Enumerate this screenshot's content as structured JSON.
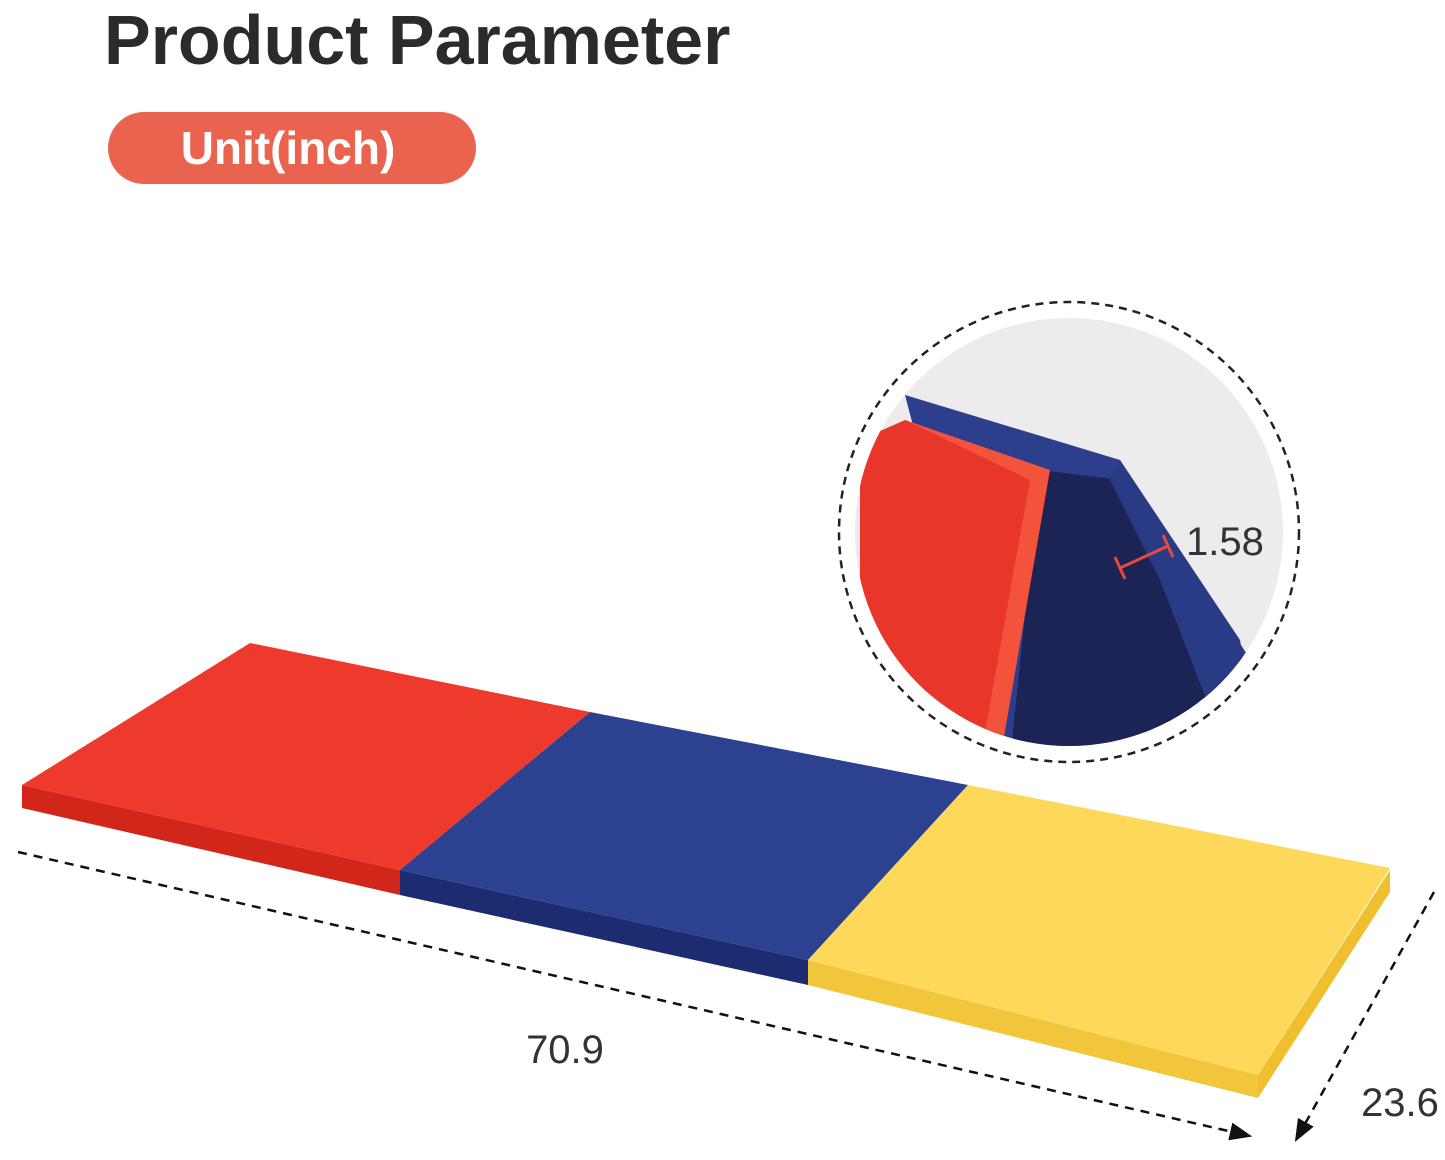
{
  "header": {
    "title": "Product Parameter",
    "unit": "Unit(inch)"
  },
  "dimensions": {
    "length": "70.9",
    "width": "23.6",
    "thickness": "1.58"
  }
}
